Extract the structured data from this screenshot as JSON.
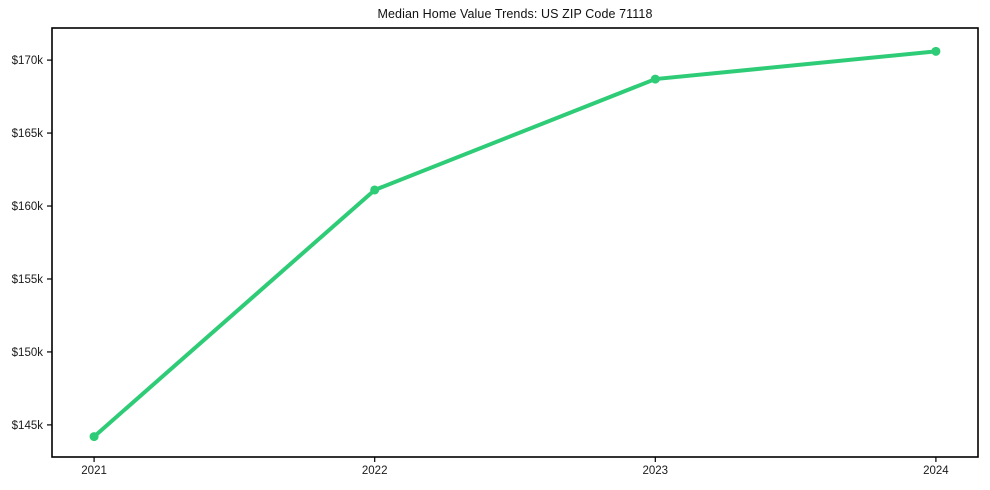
{
  "chart_data": {
    "type": "line",
    "title": "Median Home Value Trends: US ZIP Code 71118",
    "series": [
      {
        "name": "Median Home Value",
        "x": [
          2021,
          2022,
          2023,
          2024
        ],
        "values": [
          144200,
          161100,
          168700,
          170600
        ]
      }
    ],
    "x_tick_labels": [
      "2021",
      "2022",
      "2023",
      "2024"
    ],
    "x_tick_values": [
      2021,
      2022,
      2023,
      2024
    ],
    "y_tick_labels": [
      "$145k",
      "$150k",
      "$155k",
      "$160k",
      "$165k",
      "$170k"
    ],
    "y_tick_values": [
      145000,
      150000,
      155000,
      160000,
      165000,
      170000
    ],
    "xlim": [
      2020.85,
      2024.15
    ],
    "ylim": [
      142800,
      172200
    ],
    "grid": false,
    "legend": "none",
    "colors": {
      "line": "#2fcc77",
      "marker": "#2fcc77",
      "axis": "#000000",
      "tick_text": "#1a1a1a",
      "background": "#ffffff"
    }
  }
}
